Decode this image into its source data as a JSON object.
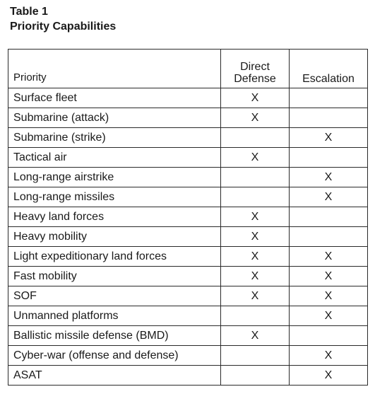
{
  "caption": {
    "label": "Table 1",
    "title": "Priority Capabilities"
  },
  "table": {
    "headers": {
      "priority": "Priority",
      "direct_defense_line1": "Direct",
      "direct_defense_line2": "Defense",
      "escalation": "Escalation"
    },
    "rows": [
      {
        "priority": "Surface fleet",
        "direct_defense": "X",
        "escalation": ""
      },
      {
        "priority": "Submarine (attack)",
        "direct_defense": "X",
        "escalation": ""
      },
      {
        "priority": "Submarine (strike)",
        "direct_defense": "",
        "escalation": "X"
      },
      {
        "priority": "Tactical air",
        "direct_defense": "X",
        "escalation": ""
      },
      {
        "priority": "Long-range airstrike",
        "direct_defense": "",
        "escalation": "X"
      },
      {
        "priority": "Long-range missiles",
        "direct_defense": "",
        "escalation": "X"
      },
      {
        "priority": "Heavy land forces",
        "direct_defense": "X",
        "escalation": ""
      },
      {
        "priority": "Heavy mobility",
        "direct_defense": "X",
        "escalation": ""
      },
      {
        "priority": "Light expeditionary land forces",
        "direct_defense": "X",
        "escalation": "X"
      },
      {
        "priority": "Fast mobility",
        "direct_defense": "X",
        "escalation": "X"
      },
      {
        "priority": "SOF",
        "direct_defense": "X",
        "escalation": "X"
      },
      {
        "priority": "Unmanned platforms",
        "direct_defense": "",
        "escalation": "X"
      },
      {
        "priority": "Ballistic missile defense (BMD)",
        "direct_defense": "X",
        "escalation": ""
      },
      {
        "priority": "Cyber-war (offense and defense)",
        "direct_defense": "",
        "escalation": "X"
      },
      {
        "priority": "ASAT",
        "direct_defense": "",
        "escalation": "X"
      }
    ]
  }
}
